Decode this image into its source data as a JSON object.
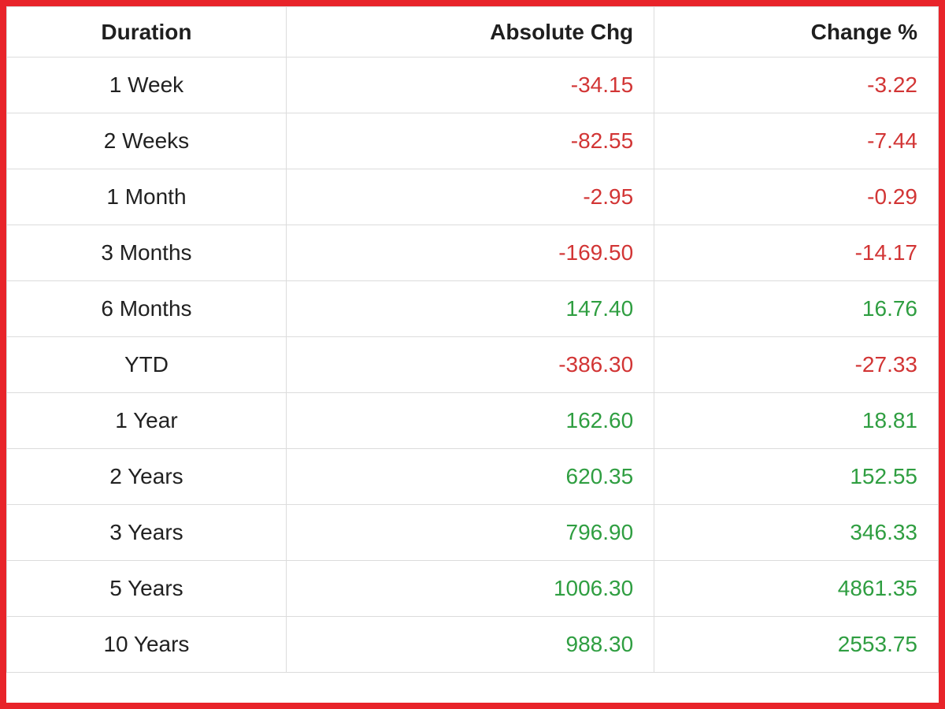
{
  "colors": {
    "frame_border": "#e8242a",
    "negative": "#d23535",
    "positive": "#2f9e41",
    "grid_line": "#dcdcdc",
    "header_text": "#1f1f1f"
  },
  "table": {
    "columns": [
      {
        "label": "Duration",
        "align": "center"
      },
      {
        "label": "Absolute Chg",
        "align": "right"
      },
      {
        "label": "Change %",
        "align": "right"
      }
    ],
    "rows": [
      {
        "duration": "1 Week",
        "absolute_chg": "-34.15",
        "change_pct": "-3.22",
        "trend": "negative"
      },
      {
        "duration": "2 Weeks",
        "absolute_chg": "-82.55",
        "change_pct": "-7.44",
        "trend": "negative"
      },
      {
        "duration": "1 Month",
        "absolute_chg": "-2.95",
        "change_pct": "-0.29",
        "trend": "negative"
      },
      {
        "duration": "3 Months",
        "absolute_chg": "-169.50",
        "change_pct": "-14.17",
        "trend": "negative"
      },
      {
        "duration": "6 Months",
        "absolute_chg": "147.40",
        "change_pct": "16.76",
        "trend": "positive"
      },
      {
        "duration": "YTD",
        "absolute_chg": "-386.30",
        "change_pct": "-27.33",
        "trend": "negative"
      },
      {
        "duration": "1 Year",
        "absolute_chg": "162.60",
        "change_pct": "18.81",
        "trend": "positive"
      },
      {
        "duration": "2 Years",
        "absolute_chg": "620.35",
        "change_pct": "152.55",
        "trend": "positive"
      },
      {
        "duration": "3 Years",
        "absolute_chg": "796.90",
        "change_pct": "346.33",
        "trend": "positive"
      },
      {
        "duration": "5 Years",
        "absolute_chg": "1006.30",
        "change_pct": "4861.35",
        "trend": "positive"
      },
      {
        "duration": "10 Years",
        "absolute_chg": "988.30",
        "change_pct": "2553.75",
        "trend": "positive"
      }
    ]
  },
  "chart_data": {
    "type": "table",
    "columns": [
      "Duration",
      "Absolute Chg",
      "Change %"
    ],
    "rows": [
      [
        "1 Week",
        -34.15,
        -3.22
      ],
      [
        "2 Weeks",
        -82.55,
        -7.44
      ],
      [
        "1 Month",
        -2.95,
        -0.29
      ],
      [
        "3 Months",
        -169.5,
        -14.17
      ],
      [
        "6 Months",
        147.4,
        16.76
      ],
      [
        "YTD",
        -386.3,
        -27.33
      ],
      [
        "1 Year",
        162.6,
        18.81
      ],
      [
        "2 Years",
        620.35,
        152.55
      ],
      [
        "3 Years",
        796.9,
        346.33
      ],
      [
        "5 Years",
        1006.3,
        4861.35
      ],
      [
        "10 Years",
        988.3,
        2553.75
      ]
    ],
    "notes": "Negative values rendered in red, positive values in green"
  }
}
